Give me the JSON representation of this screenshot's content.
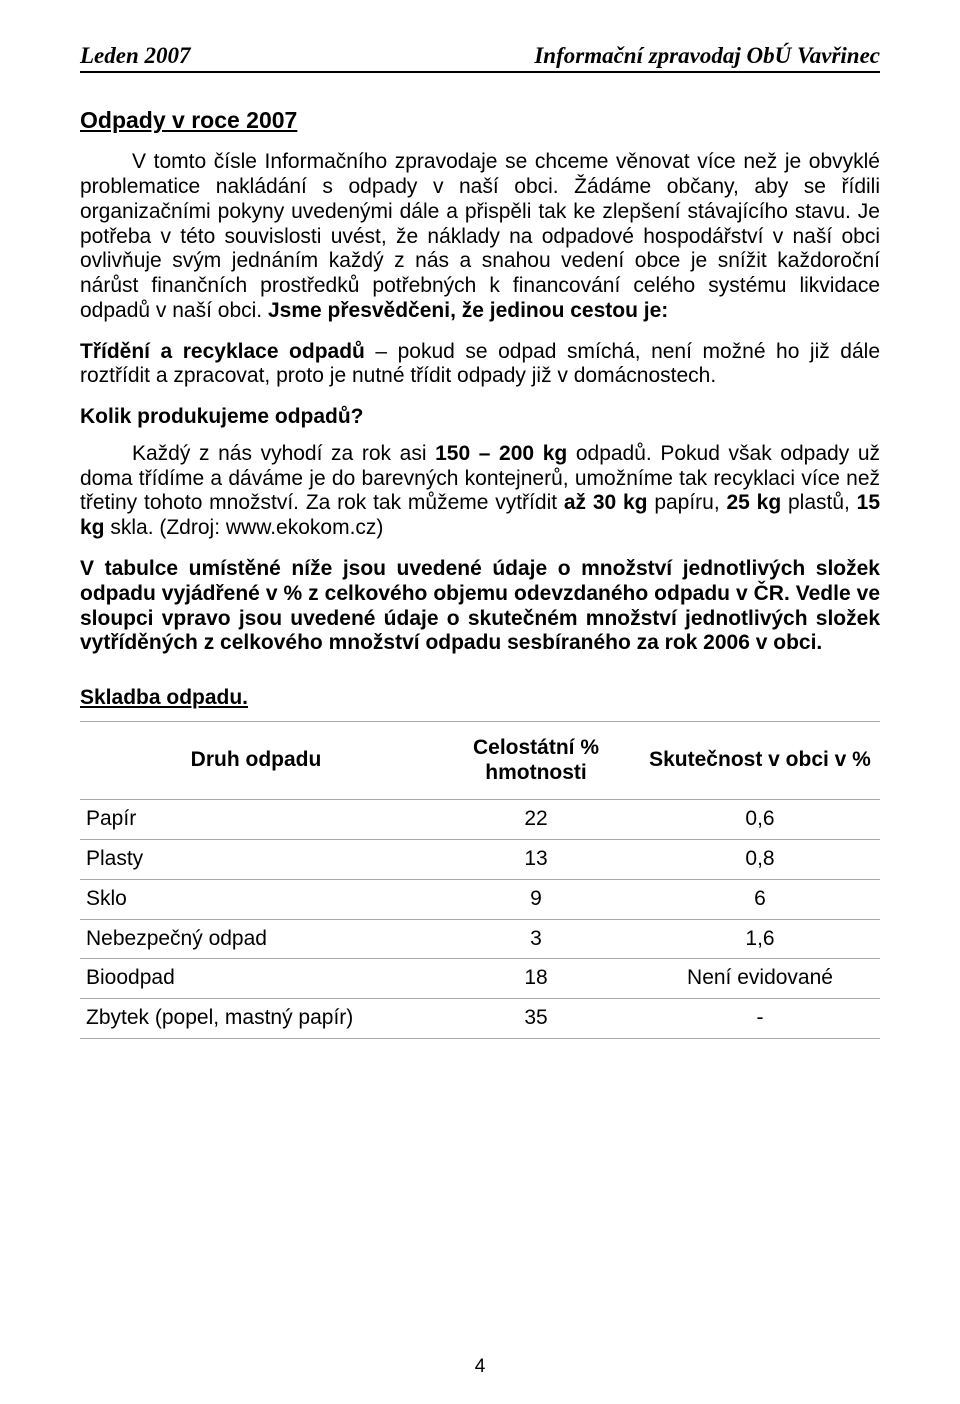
{
  "header": {
    "left": "Leden 2007",
    "right": "Informační zpravodaj ObÚ Vavřinec"
  },
  "title": "Odpady v roce 2007",
  "p1_runs": [
    {
      "t": "V tomto čísle Informačního zpravodaje se chceme věnovat více než je obvyklé problematice nakládání s odpady v naší obci. Žádáme občany, aby se řídili organizačními pokyny uvedenými dále a přispěli tak ke zlepšení stávajícího stavu. Je potřeba v této souvislosti uvést, že náklady na odpadové hospodářství v naší obci ovlivňuje svým jednáním každý z nás a snahou vedení obce je snížit každoroční nárůst finančních prostředků potřebných k financování celého systému likvidace odpadů v naší obci. ",
      "b": false
    },
    {
      "t": "Jsme přesvědčeni, že jedinou cestou je:",
      "b": true
    }
  ],
  "p2_runs": [
    {
      "t": "Třídění a recyklace odpadů",
      "b": true
    },
    {
      "t": " – pokud se odpad smíchá, není možné ho již dále roztřídit a zpracovat, proto je nutné třídit odpady již v domácnostech.",
      "b": false
    }
  ],
  "p3": "Kolik produkujeme odpadů?",
  "p4_runs": [
    {
      "t": "Každý z nás vyhodí za rok asi ",
      "b": false
    },
    {
      "t": "150 – 200 kg",
      "b": true
    },
    {
      "t": " odpadů. Pokud však odpady už doma třídíme a dáváme je do barevných kontejnerů, umožníme tak recyklaci více než třetiny tohoto množství. Za rok tak můžeme vytřídit ",
      "b": false
    },
    {
      "t": "až 30 kg",
      "b": true
    },
    {
      "t": " papíru, ",
      "b": false
    },
    {
      "t": "25 kg",
      "b": true
    },
    {
      "t": " plastů, ",
      "b": false
    },
    {
      "t": "15 kg",
      "b": true
    },
    {
      "t": " skla. (Zdroj: www.ekokom.cz)",
      "b": false
    }
  ],
  "p5": "V tabulce umístěné níže jsou uvedené údaje o množství jednotlivých složek  odpadu vyjádřené v % z celkového objemu odevzdaného odpadu v ČR. Vedle ve sloupci vpravo jsou uvedené údaje o skutečném množství jednotlivých složek vytříděných z celkového množství odpadu sesbíraného za rok 2006 v obci.",
  "table_heading": "Skladba odpadu.",
  "table": {
    "columns": [
      "Druh odpadu",
      "Celostátní % hmotnosti",
      "Skutečnost v obci v %"
    ],
    "rows": [
      [
        "Papír",
        "22",
        "0,6"
      ],
      [
        "Plasty",
        "13",
        "0,8"
      ],
      [
        "Sklo",
        "9",
        "6"
      ],
      [
        "Nebezpečný odpad",
        "3",
        "1,6"
      ],
      [
        "Bioodpad",
        "18",
        "Není evidované"
      ],
      [
        "Zbytek (popel, mastný papír)",
        "35",
        "-"
      ]
    ]
  },
  "page_number": "4"
}
